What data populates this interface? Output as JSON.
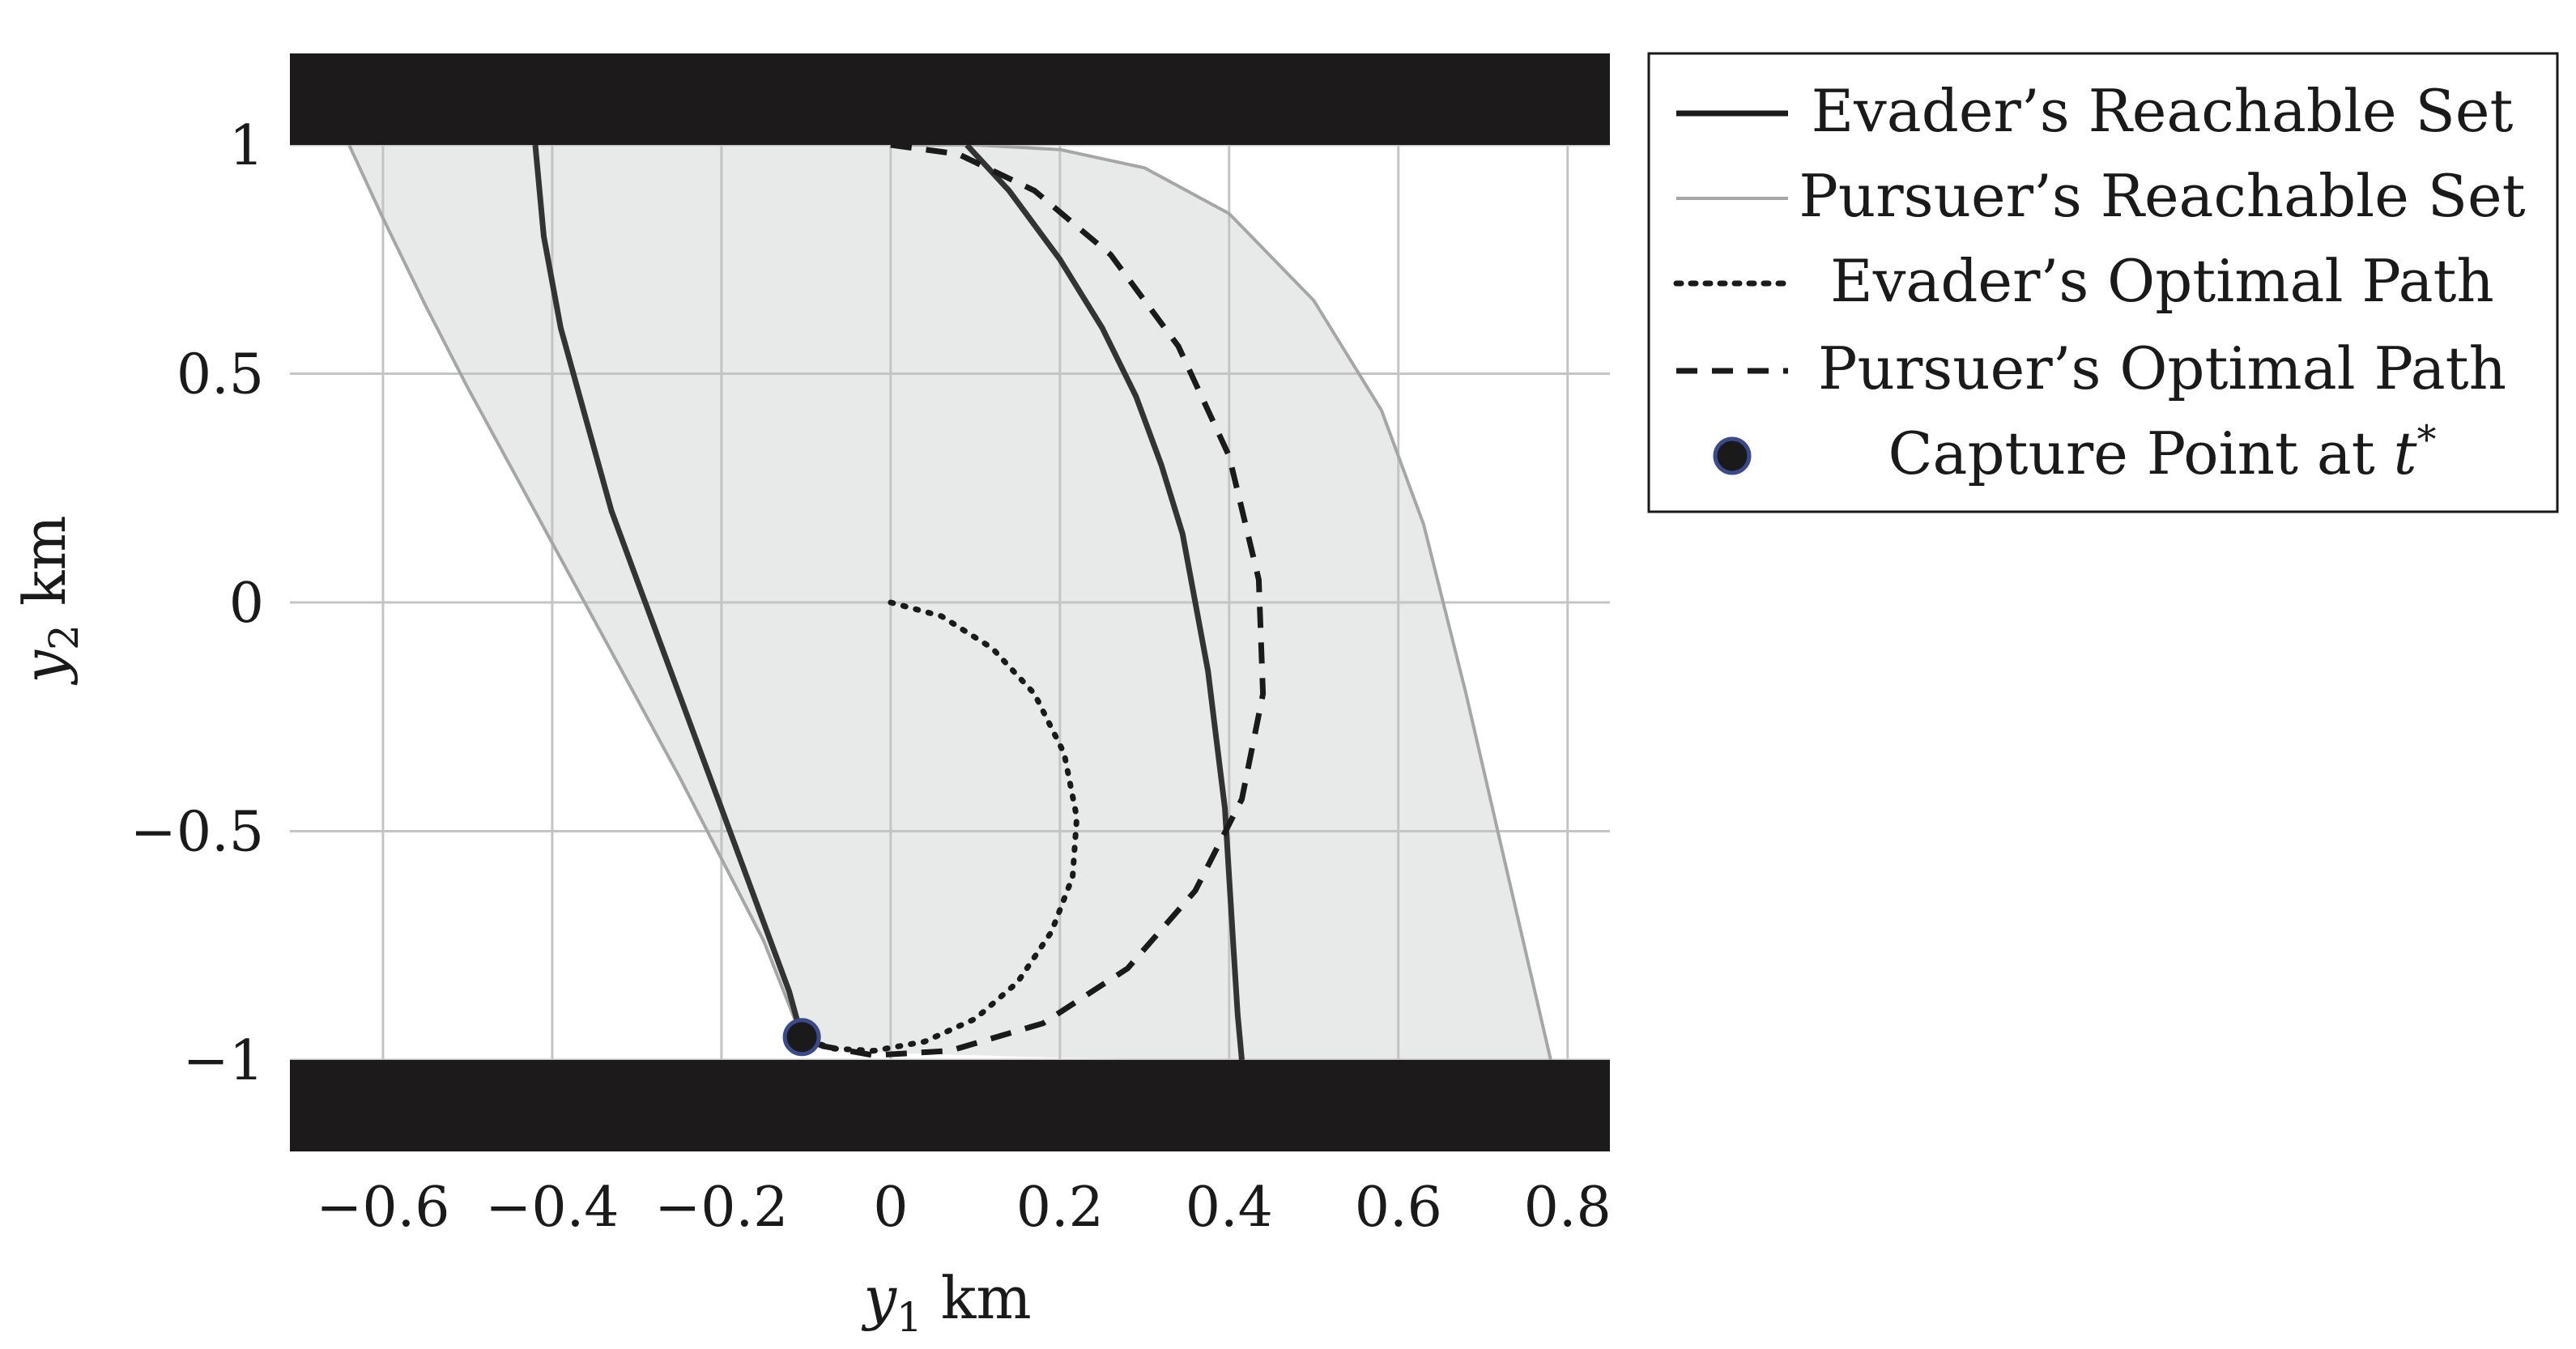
{
  "chart_data": {
    "type": "line",
    "title": "",
    "xlabel": "y",
    "xlabel_sub": "1",
    "xlabel_unit": " km",
    "ylabel": "y",
    "ylabel_sub": "2",
    "ylabel_unit": " km",
    "xlim": [
      -0.71,
      0.85
    ],
    "ylim": [
      -1.2,
      1.2
    ],
    "xticks": [
      {
        "value": -0.6,
        "label": "−0.6"
      },
      {
        "value": -0.4,
        "label": "−0.4"
      },
      {
        "value": -0.2,
        "label": "−0.2"
      },
      {
        "value": 0,
        "label": "0"
      },
      {
        "value": 0.2,
        "label": "0.2"
      },
      {
        "value": 0.4,
        "label": "0.4"
      },
      {
        "value": 0.6,
        "label": "0.6"
      },
      {
        "value": 0.8,
        "label": "0.8"
      }
    ],
    "yticks": [
      {
        "value": 1,
        "label": "1"
      },
      {
        "value": 0.5,
        "label": "0.5"
      },
      {
        "value": 0,
        "label": "0"
      },
      {
        "value": -0.5,
        "label": "−0.5"
      },
      {
        "value": -1,
        "label": "−1"
      }
    ],
    "grid": true,
    "legend_position": "outside-right-top",
    "colors": {
      "evader_reach": "#333333",
      "pursuer_reach": "#a6a6a6",
      "pursuer_fill": "#e8e9e9",
      "evader_path": "#1a1a1a",
      "pursuer_path": "#1a1a1a",
      "obstacle": "#1c1a1b",
      "grid": "#c4c4c4",
      "capture_fill": "#1a1a1a",
      "capture_edge": "#3a4a8a"
    },
    "obstacles": [
      {
        "y_from": 1.0,
        "y_to": 1.2
      },
      {
        "y_from": -1.2,
        "y_to": -1.0
      }
    ],
    "pursuer_reachable_region": [
      [
        -0.64,
        1.0
      ],
      [
        -0.6,
        0.84
      ],
      [
        -0.55,
        0.65
      ],
      [
        -0.5,
        0.47
      ],
      [
        -0.45,
        0.3
      ],
      [
        -0.4,
        0.13
      ],
      [
        -0.35,
        -0.04
      ],
      [
        -0.3,
        -0.21
      ],
      [
        -0.25,
        -0.38
      ],
      [
        -0.2,
        -0.56
      ],
      [
        -0.15,
        -0.74
      ],
      [
        -0.105,
        -0.95
      ],
      [
        -0.07,
        -0.975
      ],
      [
        0.0,
        -0.985
      ],
      [
        0.1,
        -0.99
      ],
      [
        0.2,
        -0.995
      ],
      [
        0.3,
        -0.998
      ],
      [
        0.4,
        -1.0
      ],
      [
        0.5,
        -1.0
      ],
      [
        0.6,
        -1.0
      ],
      [
        0.7,
        -1.0
      ],
      [
        0.78,
        -1.0
      ],
      [
        0.73,
        -0.6
      ],
      [
        0.68,
        -0.2
      ],
      [
        0.63,
        0.17
      ],
      [
        0.58,
        0.42
      ],
      [
        0.5,
        0.66
      ],
      [
        0.4,
        0.85
      ],
      [
        0.3,
        0.95
      ],
      [
        0.2,
        0.99
      ],
      [
        0.1,
        1.0
      ],
      [
        0.0,
        1.0
      ],
      [
        -0.3,
        1.0
      ],
      [
        -0.64,
        1.0
      ]
    ],
    "series": [
      {
        "name": "Evader’s Reachable Set",
        "style": "solid-dark",
        "segments": [
          [
            [
              -0.42,
              1.0
            ],
            [
              -0.41,
              0.8
            ],
            [
              -0.39,
              0.6
            ],
            [
              -0.36,
              0.4
            ],
            [
              -0.33,
              0.2
            ],
            [
              -0.3,
              0.05
            ],
            [
              -0.27,
              -0.1
            ],
            [
              -0.24,
              -0.25
            ],
            [
              -0.21,
              -0.4
            ],
            [
              -0.18,
              -0.55
            ],
            [
              -0.15,
              -0.7
            ],
            [
              -0.12,
              -0.85
            ],
            [
              -0.105,
              -0.95
            ]
          ],
          [
            [
              0.09,
              1.0
            ],
            [
              0.14,
              0.9
            ],
            [
              0.2,
              0.75
            ],
            [
              0.25,
              0.6
            ],
            [
              0.29,
              0.45
            ],
            [
              0.32,
              0.3
            ],
            [
              0.345,
              0.15
            ],
            [
              0.36,
              0.0
            ],
            [
              0.375,
              -0.15
            ],
            [
              0.385,
              -0.3
            ],
            [
              0.395,
              -0.45
            ],
            [
              0.4,
              -0.6
            ],
            [
              0.405,
              -0.75
            ],
            [
              0.41,
              -0.9
            ],
            [
              0.415,
              -1.0
            ]
          ]
        ]
      },
      {
        "name": "Pursuer’s Reachable Set",
        "style": "solid-light",
        "segments": [
          [
            [
              -0.64,
              1.0
            ],
            [
              -0.6,
              0.84
            ],
            [
              -0.55,
              0.65
            ],
            [
              -0.5,
              0.47
            ],
            [
              -0.45,
              0.3
            ],
            [
              -0.4,
              0.13
            ],
            [
              -0.35,
              -0.04
            ],
            [
              -0.3,
              -0.21
            ],
            [
              -0.25,
              -0.38
            ],
            [
              -0.2,
              -0.56
            ],
            [
              -0.15,
              -0.74
            ],
            [
              -0.105,
              -0.95
            ]
          ],
          [
            [
              0.0,
              1.0
            ],
            [
              0.1,
              1.0
            ],
            [
              0.2,
              0.99
            ],
            [
              0.3,
              0.95
            ],
            [
              0.4,
              0.85
            ],
            [
              0.5,
              0.66
            ],
            [
              0.58,
              0.42
            ],
            [
              0.63,
              0.17
            ],
            [
              0.68,
              -0.2
            ],
            [
              0.73,
              -0.6
            ],
            [
              0.78,
              -1.0
            ]
          ]
        ]
      },
      {
        "name": "Evader’s Optimal Path",
        "style": "dotted",
        "segments": [
          [
            [
              0.0,
              0.0
            ],
            [
              0.06,
              -0.03
            ],
            [
              0.12,
              -0.1
            ],
            [
              0.17,
              -0.2
            ],
            [
              0.205,
              -0.33
            ],
            [
              0.22,
              -0.47
            ],
            [
              0.215,
              -0.6
            ],
            [
              0.19,
              -0.72
            ],
            [
              0.15,
              -0.83
            ],
            [
              0.1,
              -0.91
            ],
            [
              0.04,
              -0.96
            ],
            [
              -0.02,
              -0.98
            ],
            [
              -0.07,
              -0.975
            ],
            [
              -0.105,
              -0.95
            ]
          ]
        ]
      },
      {
        "name": "Pursuer’s Optimal Path",
        "style": "dashed",
        "segments": [
          [
            [
              0.0,
              1.0
            ],
            [
              0.08,
              0.98
            ],
            [
              0.17,
              0.9
            ],
            [
              0.26,
              0.76
            ],
            [
              0.34,
              0.56
            ],
            [
              0.4,
              0.32
            ],
            [
              0.435,
              0.05
            ],
            [
              0.44,
              -0.2
            ],
            [
              0.415,
              -0.43
            ],
            [
              0.36,
              -0.63
            ],
            [
              0.28,
              -0.8
            ],
            [
              0.18,
              -0.92
            ],
            [
              0.07,
              -0.98
            ],
            [
              -0.02,
              -0.99
            ],
            [
              -0.08,
              -0.97
            ],
            [
              -0.105,
              -0.95
            ]
          ]
        ]
      }
    ],
    "capture_point": {
      "name": "Capture Point at t*",
      "label_main": "Capture Point at ",
      "label_var": "t",
      "label_sup": "*",
      "x": -0.105,
      "y": -0.95
    }
  }
}
